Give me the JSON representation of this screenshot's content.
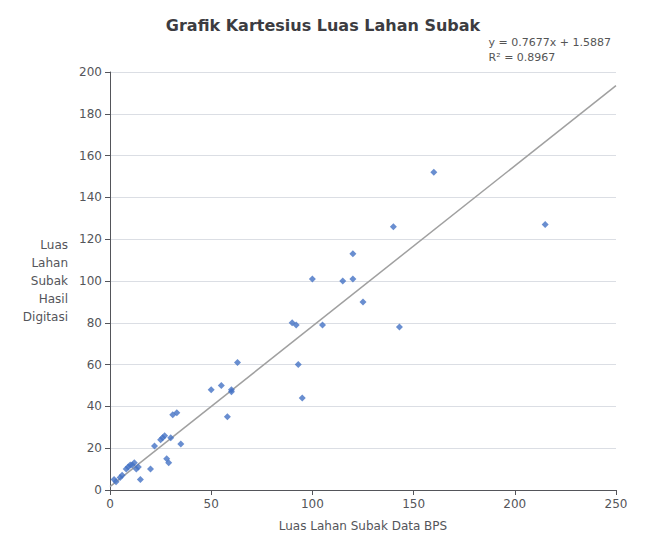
{
  "chart_data": {
    "type": "scatter",
    "title": "Grafik Kartesius Luas Lahan Subak",
    "annotations": [
      "y = 0.7677x + 1.5887",
      "R² = 0.8967"
    ],
    "xlabel": "Luas Lahan Subak Data BPS",
    "ylabel": "Luas\nLahan\nSubak\nHasil\nDigitasi",
    "series": [
      {
        "type": "scatter",
        "color": "#4472C4",
        "marker": "diamond",
        "x": [
          2,
          3,
          5,
          6,
          8,
          9,
          10,
          11,
          12,
          13,
          14,
          15,
          20,
          22,
          25,
          26,
          27,
          28,
          29,
          30,
          31,
          33,
          35,
          50,
          55,
          58,
          60,
          60,
          63,
          90,
          92,
          93,
          95,
          100,
          105,
          115,
          120,
          120,
          125,
          140,
          143,
          160,
          215
        ],
        "values": [
          5,
          4,
          6,
          7,
          10,
          11,
          12,
          12,
          13,
          10,
          11,
          5,
          10,
          21,
          24,
          25,
          26,
          15,
          13,
          25,
          36,
          37,
          22,
          48,
          50,
          35,
          47,
          48,
          61,
          80,
          79,
          60,
          44,
          101,
          79,
          100,
          101,
          113,
          90,
          126,
          78,
          152,
          127
        ]
      },
      {
        "type": "line",
        "color": "#A0A0A0",
        "x": [
          0,
          250
        ],
        "values": [
          1.5887,
          193.5137
        ]
      }
    ],
    "xlim": [
      0,
      250
    ],
    "ylim": [
      0,
      200
    ],
    "xticks": [
      0,
      50,
      100,
      150,
      200,
      250
    ],
    "yticks": [
      0,
      20,
      40,
      60,
      80,
      100,
      120,
      140,
      160,
      180,
      200
    ],
    "grid": "y"
  }
}
